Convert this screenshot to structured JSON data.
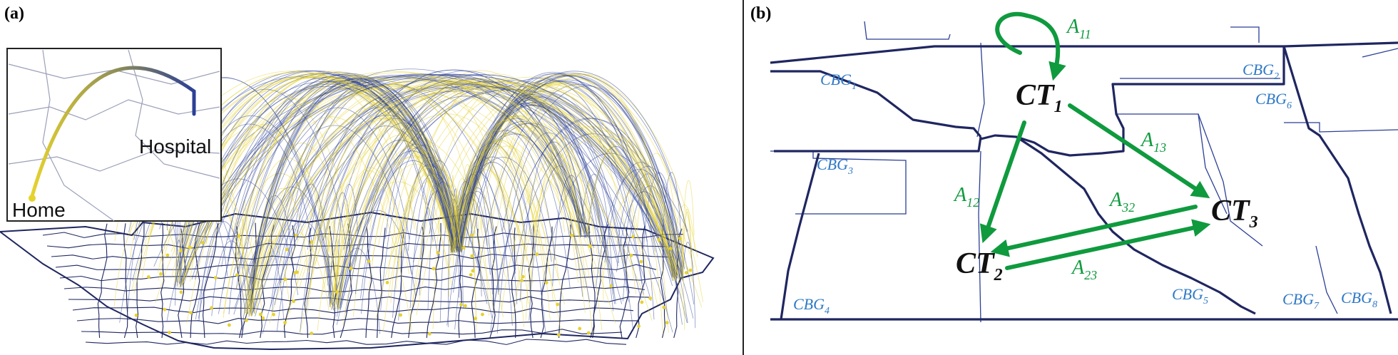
{
  "panels": {
    "a": {
      "label": "(a)",
      "inset": {
        "home": "Home",
        "hospital": "Hospital"
      }
    },
    "b": {
      "label": "(b)",
      "tracts": [
        {
          "id": "CT1",
          "base": "CT",
          "sub": "1"
        },
        {
          "id": "CT2",
          "base": "CT",
          "sub": "2"
        },
        {
          "id": "CT3",
          "base": "CT",
          "sub": "3"
        }
      ],
      "block_groups": [
        {
          "base": "CBG",
          "sub": "1"
        },
        {
          "base": "CBG",
          "sub": "2"
        },
        {
          "base": "CBG",
          "sub": "3"
        },
        {
          "base": "CBG",
          "sub": "4"
        },
        {
          "base": "CBG",
          "sub": "5"
        },
        {
          "base": "CBG",
          "sub": "6"
        },
        {
          "base": "CBG",
          "sub": "7"
        },
        {
          "base": "CBG",
          "sub": "8"
        }
      ],
      "flows": [
        {
          "base": "A",
          "sub": "11"
        },
        {
          "base": "A",
          "sub": "12"
        },
        {
          "base": "A",
          "sub": "13"
        },
        {
          "base": "A",
          "sub": "32"
        },
        {
          "base": "A",
          "sub": "23"
        }
      ]
    }
  },
  "colors": {
    "home_yellow": "#e6d22e",
    "hospital_blue": "#2b3f95",
    "boundary_navy": "#1f2660",
    "flow_green": "#0f9a3e",
    "cbg_blue": "#2f79c6",
    "tract_black": "#111111"
  }
}
